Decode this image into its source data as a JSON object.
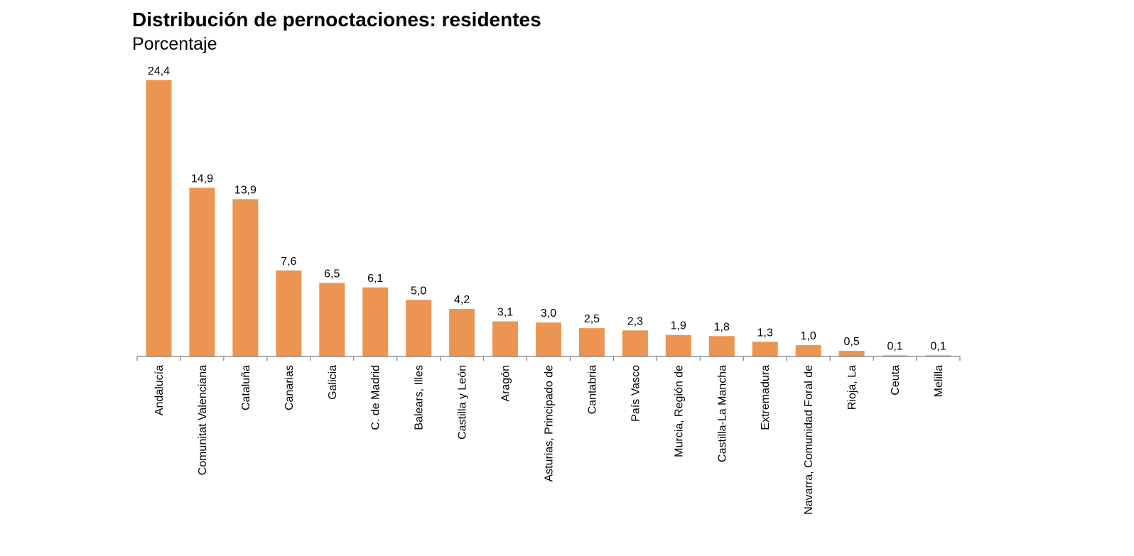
{
  "chart_data": {
    "type": "bar",
    "title": "Distribución de pernoctaciones: residentes",
    "subtitle": "Porcentaje",
    "xlabel": "",
    "ylabel": "",
    "ylim": [
      0,
      24.4
    ],
    "grid": false,
    "legend": "none",
    "bar_color": "#ec9552",
    "categories": [
      "Andalucía",
      "Comunitat Valenciana",
      "Cataluña",
      "Canarias",
      "Galicia",
      "C. de Madrid",
      "Balears, Illes",
      "Castilla y León",
      "Aragón",
      "Asturias, Principado de",
      "Cantabria",
      "País Vasco",
      "Murcia, Región de",
      "Castilla-La Mancha",
      "Extremadura",
      "Navarra, Comunidad Foral de",
      "Rioja, La",
      "Ceuta",
      "Melilla"
    ],
    "values": [
      24.4,
      14.9,
      13.9,
      7.6,
      6.5,
      6.1,
      5.0,
      4.2,
      3.1,
      3.0,
      2.5,
      2.3,
      1.9,
      1.8,
      1.3,
      1.0,
      0.5,
      0.1,
      0.1
    ],
    "data_labels": [
      "24,4",
      "14,9",
      "13,9",
      "7,6",
      "6,5",
      "6,1",
      "5,0",
      "4,2",
      "3,1",
      "3,0",
      "2,5",
      "2,3",
      "1,9",
      "1,8",
      "1,3",
      "1,0",
      "0,5",
      "0,1",
      "0,1"
    ]
  }
}
